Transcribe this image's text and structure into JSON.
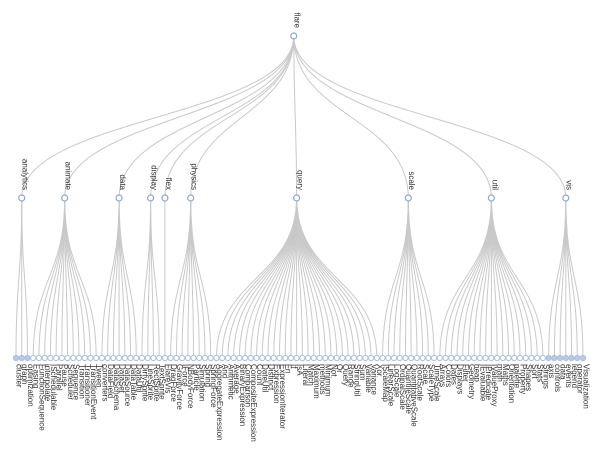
{
  "root": "flare",
  "groups": [
    {
      "name": "analytics",
      "leaves": [
        "cluster",
        "graph",
        "optimization"
      ]
    },
    {
      "name": "animate",
      "leaves": [
        "Easing",
        "FunctionSequence",
        "interpolate",
        "ISchedulable",
        "Parallel",
        "Pause",
        "Scheduler",
        "Sequence",
        "Transition",
        "Transitioner",
        "TransitionEvent",
        "Tween"
      ]
    },
    {
      "name": "data",
      "leaves": [
        "converters",
        "DataField",
        "DataSchema",
        "DataSet",
        "DataSource",
        "DataTable",
        "DataUtil"
      ]
    },
    {
      "name": "display",
      "leaves": [
        "DirtySprite",
        "LineSprite",
        "RectSprite",
        "TextSprite"
      ]
    },
    {
      "name": "flex",
      "leaves": [
        "FlareVis"
      ]
    },
    {
      "name": "physics",
      "leaves": [
        "DragForce",
        "GravityForce",
        "IForce",
        "NBodyForce",
        "Particle",
        "Simulation",
        "Spring",
        "SpringForce"
      ]
    },
    {
      "name": "query",
      "leaves": [
        "AggregateExpression",
        "And",
        "Arithmetic",
        "Average",
        "BinaryExpression",
        "Comparison",
        "CompositeExpression",
        "Count",
        "DateUtil",
        "Distinct",
        "Expression",
        "ExpressionIterator",
        "Fn",
        "If",
        "IsA",
        "Literal",
        "Match",
        "Maximum",
        "methods",
        "Minimum",
        "Not",
        "Or",
        "Query",
        "Range",
        "StringUtil",
        "Sum",
        "Variable",
        "Variance",
        "Xor"
      ]
    },
    {
      "name": "scale",
      "leaves": [
        "IScaleMap",
        "LinearScale",
        "LogScale",
        "OrdinalScale",
        "QuantileScale",
        "QuantitativeScale",
        "RootScale",
        "Scale",
        "ScaleType",
        "TimeScale"
      ]
    },
    {
      "name": "util",
      "leaves": [
        "Arrays",
        "Colors",
        "Dates",
        "Displays",
        "Filter",
        "Geometry",
        "heap",
        "IEvaluable",
        "IPredicate",
        "IValueProxy",
        "math",
        "Maths",
        "Orientation",
        "palette",
        "Property",
        "Shapes",
        "Sort",
        "Stats",
        "Strings"
      ]
    },
    {
      "name": "vis",
      "leaves": [
        "axis",
        "controls",
        "data",
        "events",
        "legend",
        "operator",
        "Visualization"
      ]
    }
  ],
  "styles": {
    "link_color": "#c9c9c9",
    "node_stroke_color": "#8aa7cc",
    "leaf_stroke_color": "#a9bfdc",
    "subtree_leaf_fill_color": "#b9cbe4",
    "label_color": "#333333"
  }
}
